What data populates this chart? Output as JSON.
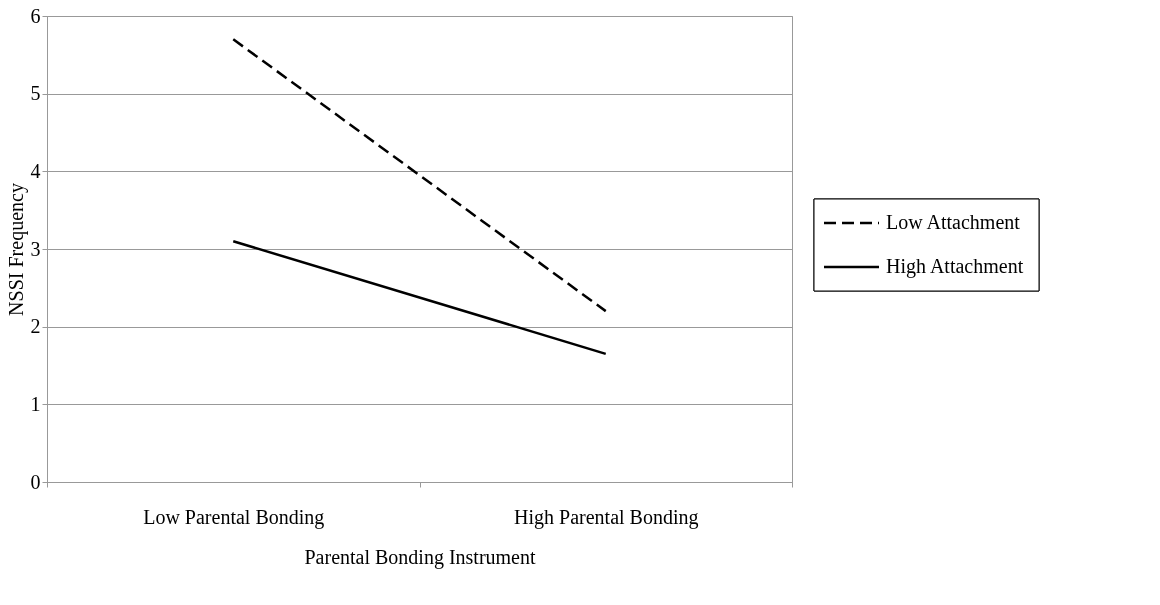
{
  "chart_data": {
    "type": "line",
    "xlabel": "Parental Bonding Instrument",
    "ylabel": "NSSI Frequency",
    "categories": [
      "Low Parental Bonding",
      "High Parental Bonding"
    ],
    "series": [
      {
        "name": "Low Attachment",
        "color": "#000000",
        "line_style": "dashed",
        "values": [
          5.7,
          2.2
        ]
      },
      {
        "name": "High Attachment",
        "color": "#000000",
        "line_style": "solid",
        "values": [
          3.1,
          1.65
        ]
      }
    ],
    "ylim": [
      0,
      6
    ],
    "yticks": [
      0,
      1,
      2,
      3,
      4,
      5,
      6
    ],
    "grid": "y",
    "legend": "right",
    "marker": "none"
  }
}
